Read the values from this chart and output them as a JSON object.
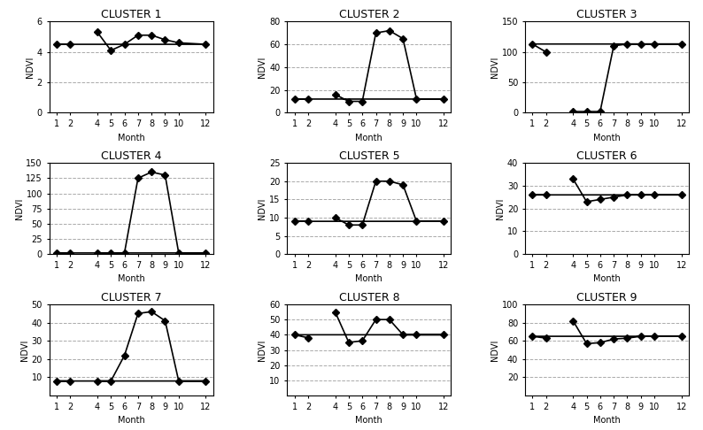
{
  "months": [
    4,
    5,
    6,
    7,
    8,
    9,
    10,
    12,
    1,
    2
  ],
  "clusters": [
    {
      "title": "CLUSTER 1",
      "values": [
        5.3,
        4.1,
        4.5,
        5.1,
        5.1,
        4.8,
        4.6,
        4.5,
        4.5,
        4.5
      ],
      "ylim": [
        0,
        6
      ],
      "yticks": [
        0,
        2,
        4,
        6
      ]
    },
    {
      "title": "CLUSTER 2",
      "values": [
        16,
        10,
        10,
        70,
        72,
        65,
        12,
        12,
        12,
        12
      ],
      "ylim": [
        0,
        80
      ],
      "yticks": [
        0,
        20,
        40,
        60,
        80
      ]
    },
    {
      "title": "CLUSTER 3",
      "values": [
        2,
        2,
        2,
        110,
        113,
        113,
        113,
        113,
        113,
        100
      ],
      "ylim": [
        0,
        150
      ],
      "yticks": [
        0,
        50,
        100,
        150
      ]
    },
    {
      "title": "CLUSTER 4",
      "values": [
        2,
        2,
        2,
        125,
        135,
        130,
        2,
        2,
        2,
        2
      ],
      "ylim": [
        0,
        150
      ],
      "yticks": [
        0,
        25,
        50,
        75,
        100,
        125,
        150
      ]
    },
    {
      "title": "CLUSTER 5",
      "values": [
        10,
        8,
        8,
        20,
        20,
        19,
        9,
        9,
        9,
        9
      ],
      "ylim": [
        0,
        25
      ],
      "yticks": [
        0,
        5,
        10,
        15,
        20,
        25
      ]
    },
    {
      "title": "CLUSTER 6",
      "values": [
        33,
        23,
        24,
        25,
        26,
        26,
        26,
        26,
        26,
        26
      ],
      "ylim": [
        0,
        40
      ],
      "yticks": [
        0,
        10,
        20,
        30,
        40
      ]
    },
    {
      "title": "CLUSTER 7",
      "values": [
        8,
        8,
        22,
        45,
        46,
        41,
        8,
        8,
        8,
        8
      ],
      "ylim": [
        0,
        50
      ],
      "yticks": [
        10,
        20,
        30,
        40,
        50
      ]
    },
    {
      "title": "CLUSTER 8",
      "values": [
        55,
        35,
        36,
        50,
        50,
        40,
        40,
        40,
        40,
        38
      ],
      "ylim": [
        0,
        60
      ],
      "yticks": [
        10,
        20,
        30,
        40,
        50,
        60
      ]
    },
    {
      "title": "CLUSTER 9",
      "values": [
        82,
        57,
        58,
        62,
        63,
        65,
        65,
        65,
        65,
        63
      ],
      "ylim": [
        0,
        100
      ],
      "yticks": [
        20,
        40,
        60,
        80,
        100
      ]
    }
  ],
  "xlabel": "Month",
  "ylabel": "NDVI",
  "line_color": "black",
  "marker": "D",
  "markersize": 4,
  "markercolor": "black",
  "grid_color": "#aaaaaa",
  "grid_linestyle": "--",
  "title_fontsize": 9,
  "label_fontsize": 7,
  "tick_fontsize": 7
}
